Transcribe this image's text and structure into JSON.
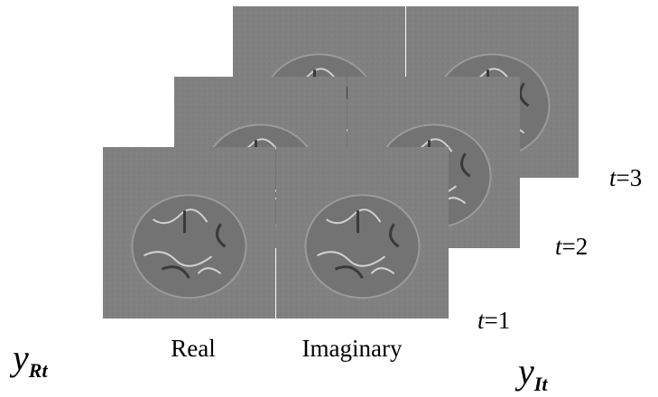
{
  "panel_labels": [
    "Real",
    "Imaginary"
  ],
  "time_labels": [
    {
      "variable": "t",
      "equals": "=1"
    },
    {
      "variable": "t",
      "equals": "=2"
    },
    {
      "variable": "t",
      "equals": "=3"
    }
  ],
  "symbols": [
    {
      "symbol": "y",
      "subscript": "Rt"
    },
    {
      "symbol": "y",
      "subscript": "It"
    }
  ]
}
